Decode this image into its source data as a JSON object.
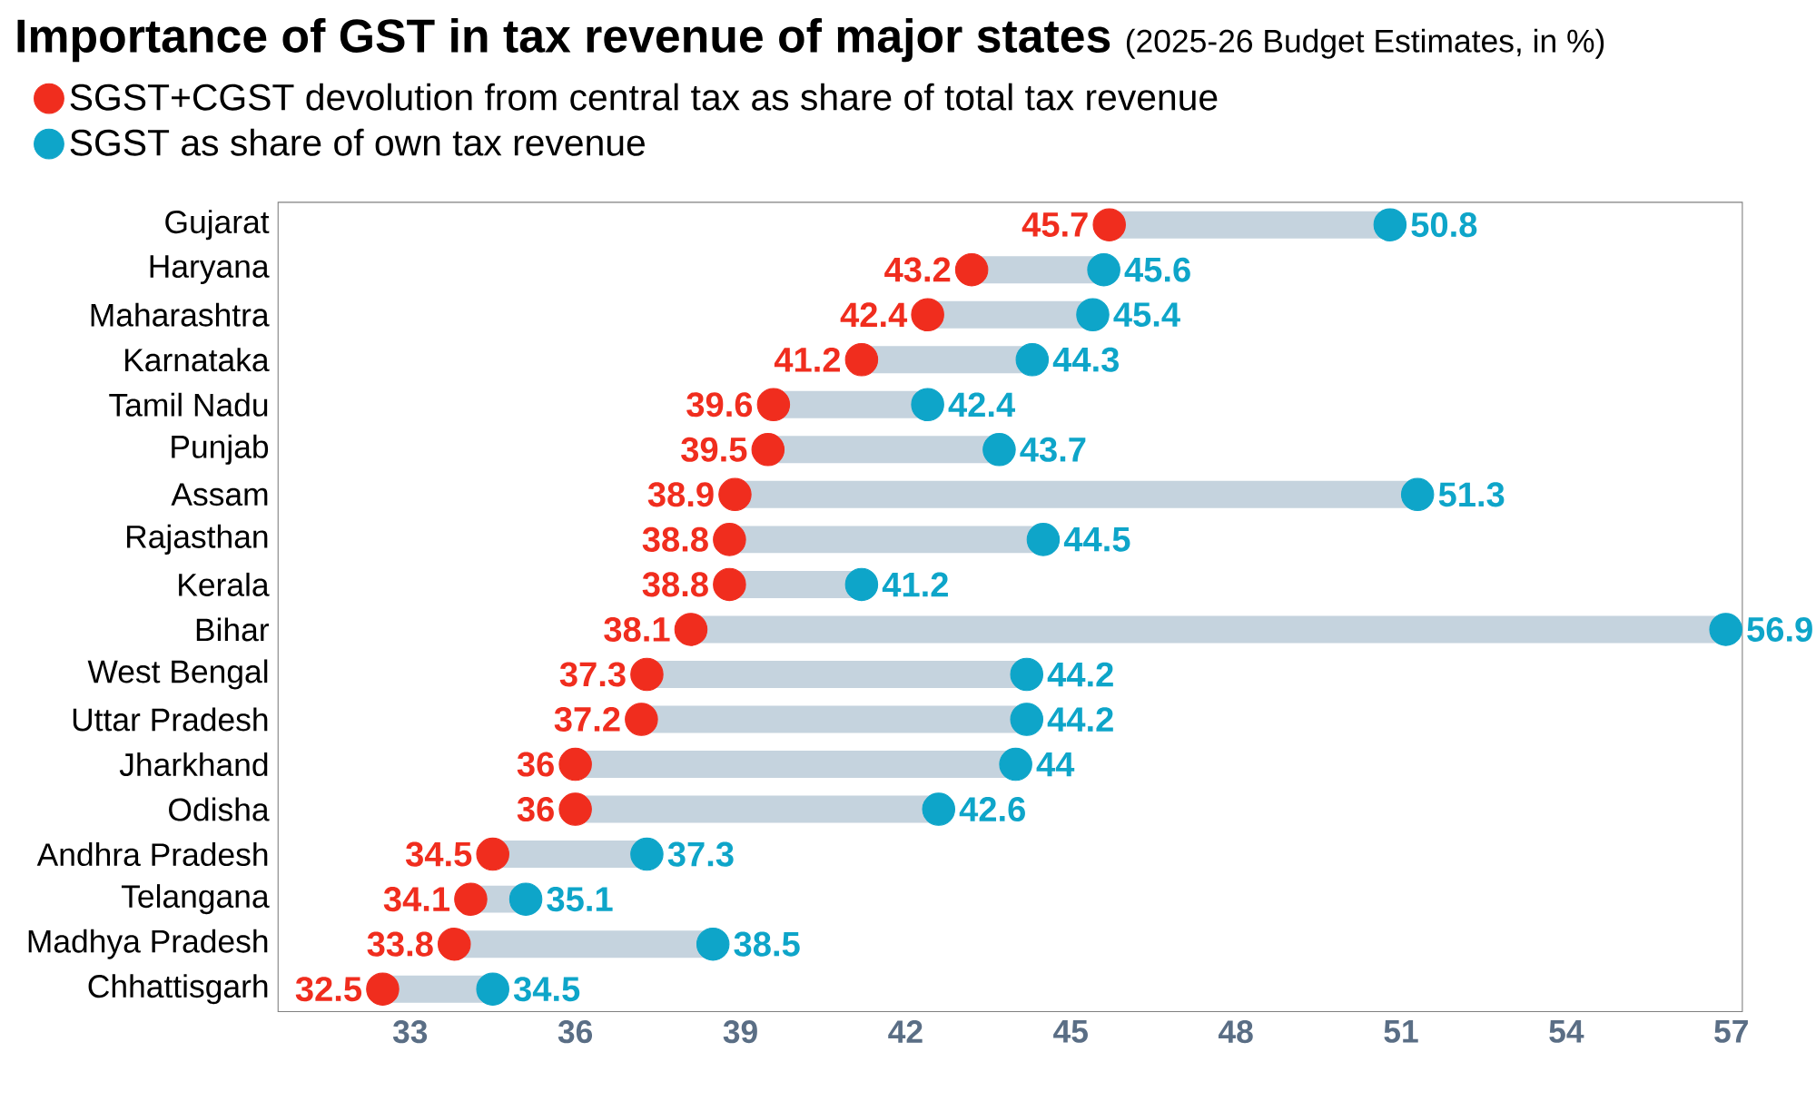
{
  "chart_data": {
    "type": "scatter",
    "title": "Importance of GST in tax revenue of major states",
    "subtitle": "(2025-26 Budget Estimates, in %)",
    "orientation": "horizontal",
    "categories": [
      "Gujarat",
      "Haryana",
      "Maharashtra",
      "Karnataka",
      "Tamil Nadu",
      "Punjab",
      "Assam",
      "Rajasthan",
      "Kerala",
      "Bihar",
      "West Bengal",
      "Uttar Pradesh",
      "Jharkhand",
      "Odisha",
      "Andhra Pradesh",
      "Telangana",
      "Madhya Pradesh",
      "Chhattisgarh"
    ],
    "series": [
      {
        "name": "SGST+CGST devolution from central tax as share of total tax revenue",
        "color": "#f02d1e",
        "values": [
          45.7,
          43.2,
          42.4,
          41.2,
          39.6,
          39.5,
          38.9,
          38.8,
          38.8,
          38.1,
          37.3,
          37.2,
          36,
          36,
          34.5,
          34.1,
          33.8,
          32.5
        ]
      },
      {
        "name": "SGST as share of own tax revenue",
        "color": "#0ea5c9",
        "values": [
          50.8,
          45.6,
          45.4,
          44.3,
          42.4,
          43.7,
          51.3,
          44.5,
          41.2,
          56.9,
          44.2,
          44.2,
          44,
          42.6,
          37.3,
          35.1,
          38.5,
          34.5
        ]
      }
    ],
    "xlim": [
      30.6,
      57.2
    ],
    "xticks": [
      33,
      36,
      39,
      42,
      45,
      48,
      51,
      54,
      57
    ],
    "marker": "circle",
    "data_labels": true,
    "legend": "top left"
  }
}
